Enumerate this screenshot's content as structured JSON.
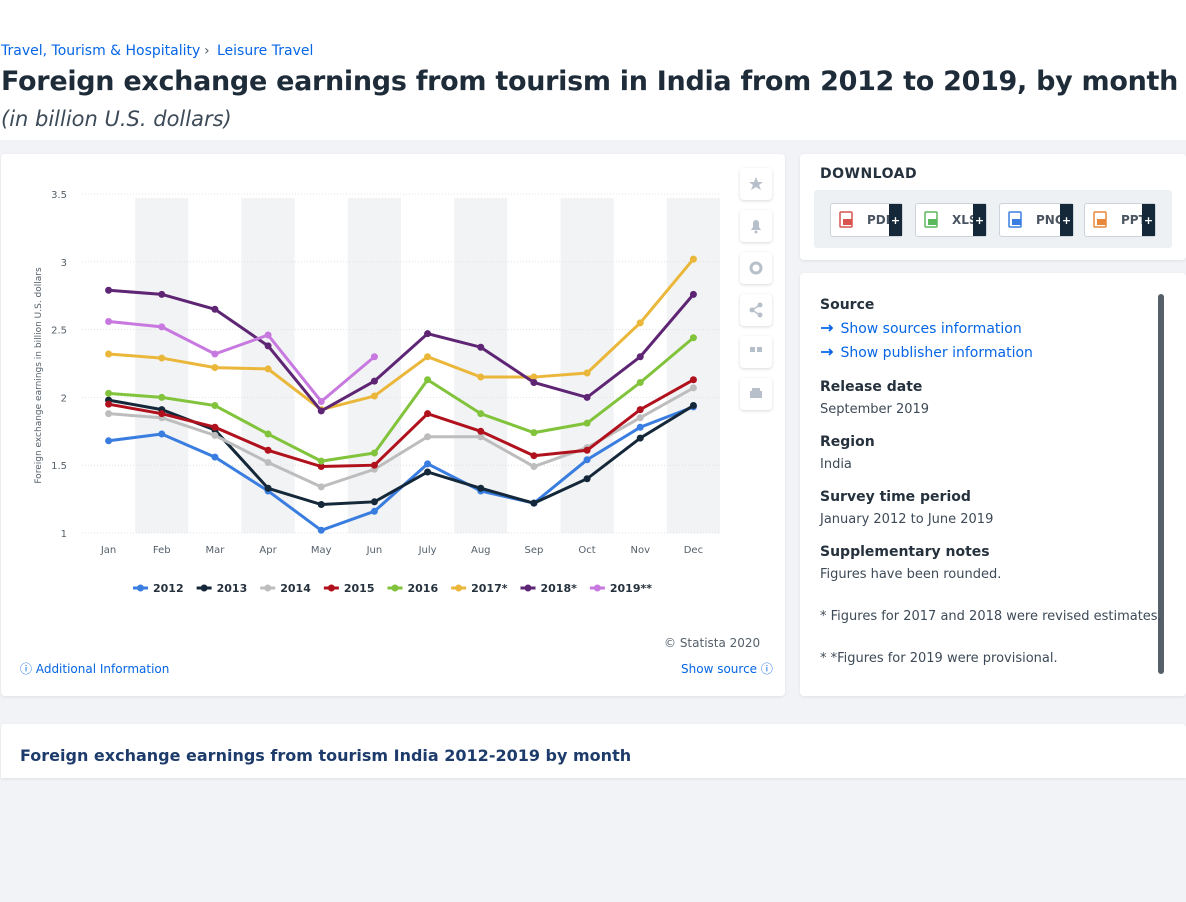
{
  "breadcrumb": [
    "Travel, Tourism & Hospitality",
    "Leisure Travel"
  ],
  "title": "Foreign exchange earnings from tourism in India from 2012 to 2019, by month",
  "subtitle": "(in billion U.S. dollars)",
  "chart_data": {
    "type": "line",
    "y_label": "Foreign exchange earnings in billion U.S. dollars",
    "categories": [
      "Jan",
      "Feb",
      "Mar",
      "Apr",
      "May",
      "Jun",
      "July",
      "Aug",
      "Sep",
      "Oct",
      "Nov",
      "Dec"
    ],
    "series": [
      {
        "name": "2012",
        "color": "#3a7de0",
        "values": [
          1.68,
          1.73,
          1.56,
          1.31,
          1.02,
          1.16,
          1.51,
          1.31,
          1.22,
          1.54,
          1.78,
          1.93
        ]
      },
      {
        "name": "2013",
        "color": "#14283a",
        "values": [
          1.98,
          1.91,
          1.76,
          1.33,
          1.21,
          1.23,
          1.45,
          1.33,
          1.22,
          1.4,
          1.7,
          1.94
        ]
      },
      {
        "name": "2014",
        "color": "#bdbdbd",
        "values": [
          1.88,
          1.85,
          1.72,
          1.52,
          1.34,
          1.47,
          1.71,
          1.71,
          1.49,
          1.63,
          1.85,
          2.07
        ]
      },
      {
        "name": "2015",
        "color": "#b0111c",
        "values": [
          1.95,
          1.88,
          1.78,
          1.61,
          1.49,
          1.5,
          1.88,
          1.75,
          1.57,
          1.61,
          1.91,
          2.13
        ]
      },
      {
        "name": "2016",
        "color": "#82c33c",
        "values": [
          2.03,
          2.0,
          1.94,
          1.73,
          1.53,
          1.59,
          2.13,
          1.88,
          1.74,
          1.81,
          2.11,
          2.44
        ]
      },
      {
        "name": "2017*",
        "color": "#eab73a",
        "values": [
          2.32,
          2.29,
          2.22,
          2.21,
          1.91,
          2.01,
          2.3,
          2.15,
          2.15,
          2.18,
          2.55,
          3.02
        ]
      },
      {
        "name": "2018*",
        "color": "#5e2574",
        "values": [
          2.79,
          2.76,
          2.65,
          2.38,
          1.9,
          2.12,
          2.47,
          2.37,
          2.11,
          2.0,
          2.3,
          2.76
        ]
      },
      {
        "name": "2019**",
        "color": "#c879e0",
        "values": [
          2.56,
          2.52,
          2.32,
          2.46,
          1.97,
          2.3,
          null,
          null,
          null,
          null,
          null,
          null
        ]
      }
    ],
    "ylim": [
      1,
      3.5
    ],
    "yticks": [
      1,
      1.5,
      2,
      2.5,
      3,
      3.5
    ],
    "grid": true,
    "legend": "bottom"
  },
  "chart_footer": {
    "copyright": "© Statista 2020",
    "additional": "Additional Information",
    "show_source": "Show source"
  },
  "download": {
    "heading": "DOWNLOAD",
    "formats": [
      "PDF",
      "XLS",
      "PNG",
      "PPT"
    ],
    "plus": "+"
  },
  "details": {
    "source_heading": "Source",
    "source_links": [
      "Show sources information",
      "Show publisher information"
    ],
    "items": [
      {
        "label": "Release date",
        "value": "September 2019"
      },
      {
        "label": "Region",
        "value": "India"
      },
      {
        "label": "Survey time period",
        "value": "January 2012 to June 2019"
      }
    ],
    "notes_heading": "Supplementary notes",
    "notes": [
      "Figures have been rounded.",
      "* Figures for 2017 and 2018 were revised estimates.",
      "* *Figures for 2019 were provisional."
    ]
  },
  "related_title": "Foreign exchange earnings from tourism India 2012-2019 by month"
}
